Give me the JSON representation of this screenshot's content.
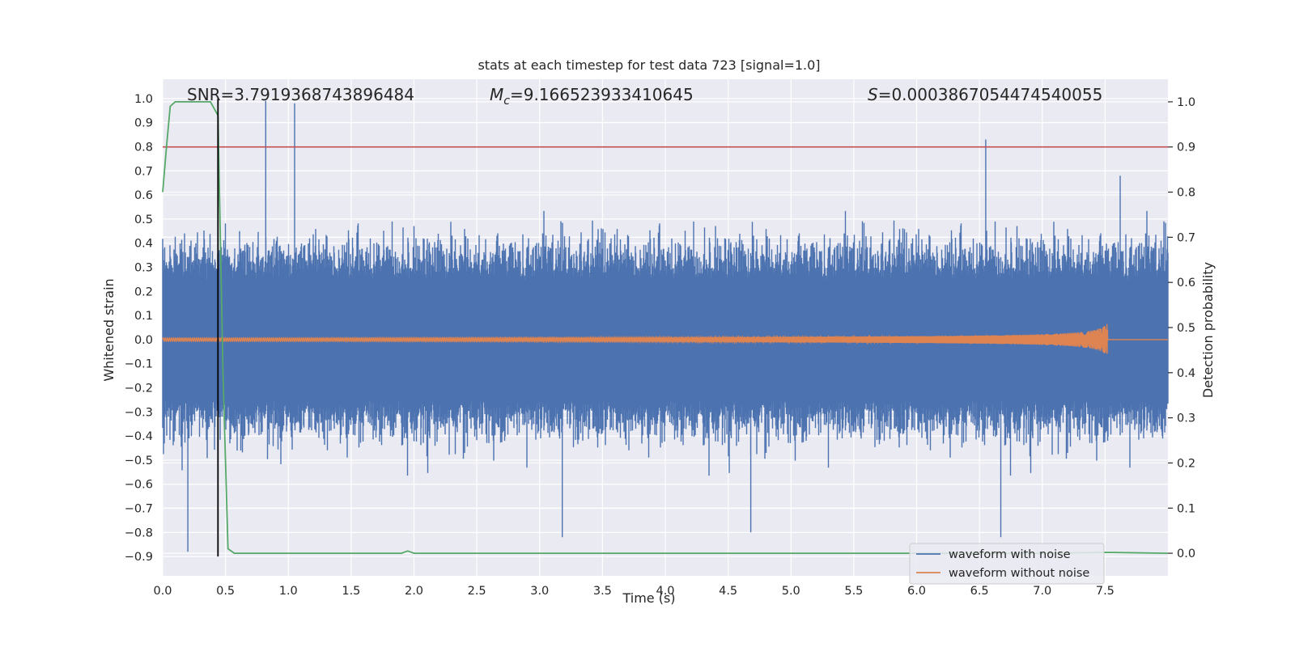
{
  "chart_data": {
    "type": "line",
    "title": "stats at each timestep for test data 723 [signal=1.0]",
    "xlabel": "Time (s)",
    "ylabel": "Whitened strain",
    "ylabel_right": "Detection probability",
    "xlim": [
      0.0,
      8.0
    ],
    "ylim": [
      -0.98,
      1.08
    ],
    "ylim_right": [
      -0.05,
      1.05
    ],
    "xticks": [
      "0.0",
      "0.5",
      "1.0",
      "1.5",
      "2.0",
      "2.5",
      "3.0",
      "3.5",
      "4.0",
      "4.5",
      "5.0",
      "5.5",
      "6.0",
      "6.5",
      "7.0",
      "7.5"
    ],
    "yticks": [
      "1.0",
      "0.9",
      "0.8",
      "0.7",
      "0.6",
      "0.5",
      "0.4",
      "0.3",
      "0.2",
      "0.1",
      "0.0",
      "−0.1",
      "−0.2",
      "−0.3",
      "−0.4",
      "−0.5",
      "−0.6",
      "−0.7",
      "−0.8",
      "−0.9"
    ],
    "yticks_right": [
      "1.0",
      "0.9",
      "0.8",
      "0.7",
      "0.6",
      "0.5",
      "0.4",
      "0.3",
      "0.2",
      "0.1",
      "0.0"
    ],
    "annotations": {
      "snr": "SNR=3.7919368743896484",
      "mc_symbol": "M",
      "mc_sub": "c",
      "mc_value": "=9.166523933410645",
      "s_symbol": "S",
      "s_value": "=0.0003867054474540055"
    },
    "legend": {
      "placement": "lower-right",
      "entries": [
        "waveform with noise",
        "waveform without noise"
      ]
    },
    "series": [
      {
        "name": "waveform with noise",
        "color": "#4c72b0",
        "envelope": {
          "typical_upper": 0.45,
          "typical_lower": -0.45
        },
        "peaks": [
          [
            0.82,
            0.99
          ],
          [
            1.05,
            0.98
          ],
          [
            0.2,
            -0.88
          ],
          [
            3.18,
            -0.82
          ],
          [
            6.55,
            0.83
          ],
          [
            6.67,
            -0.82
          ],
          [
            4.68,
            -0.8
          ],
          [
            7.62,
            0.68
          ]
        ]
      },
      {
        "name": "waveform without noise",
        "color": "#dd8452",
        "chirp": {
          "start": 0.0,
          "merger": 7.52,
          "initial_amplitude": 0.007,
          "peak_amplitude": 0.11
        }
      },
      {
        "name": "detection probability",
        "color": "#55a868",
        "axis": "right",
        "x": [
          0.0,
          0.03,
          0.06,
          0.1,
          0.15,
          0.2,
          0.3,
          0.38,
          0.44,
          0.48,
          0.52,
          0.57,
          0.65,
          1.0,
          1.9,
          1.95,
          2.0,
          3.0,
          4.0,
          5.0,
          6.0,
          7.0,
          7.5,
          8.0
        ],
        "y": [
          0.8,
          0.9,
          0.99,
          1.0,
          1.0,
          1.0,
          1.0,
          1.0,
          0.97,
          0.4,
          0.01,
          0.0,
          0.0,
          0.0,
          0.0,
          0.005,
          0.0,
          0.0,
          0.0,
          0.0,
          0.0,
          0.0,
          0.002,
          0.0
        ]
      },
      {
        "name": "threshold",
        "color": "#c44e52",
        "axis": "right",
        "value": 0.9
      },
      {
        "name": "detection time",
        "color": "#000000",
        "x": 0.44
      }
    ],
    "grid": true,
    "colors": {
      "background": "#eaeaf2",
      "grid": "#ffffff"
    }
  }
}
